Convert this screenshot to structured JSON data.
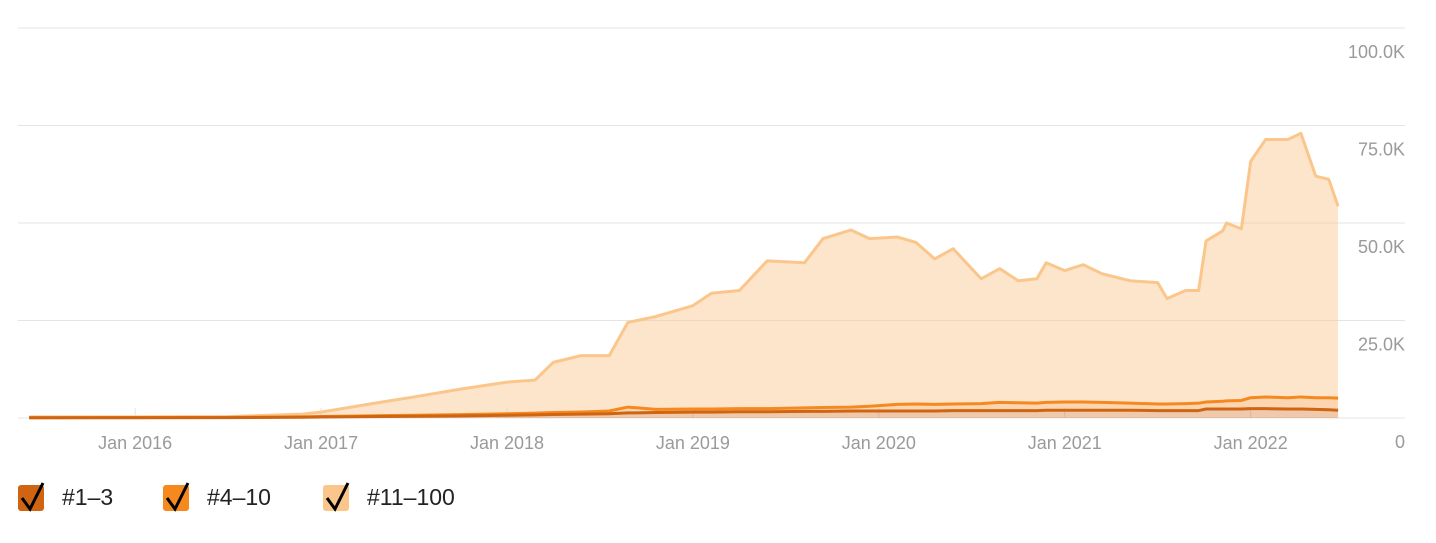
{
  "chart_data": {
    "type": "stacked-area",
    "x": [
      2015.43,
      2016.0,
      2016.5,
      2016.9,
      2017.0,
      2017.25,
      2017.5,
      2017.75,
      2018.0,
      2018.15,
      2018.25,
      2018.4,
      2018.55,
      2018.65,
      2018.8,
      2019.0,
      2019.1,
      2019.25,
      2019.4,
      2019.6,
      2019.7,
      2019.85,
      2019.95,
      2020.1,
      2020.2,
      2020.3,
      2020.4,
      2020.55,
      2020.65,
      2020.75,
      2020.85,
      2020.9,
      2021.0,
      2021.1,
      2021.2,
      2021.35,
      2021.5,
      2021.55,
      2021.65,
      2021.72,
      2021.76,
      2021.85,
      2021.87,
      2021.95,
      2022.0,
      2022.08,
      2022.2,
      2022.27,
      2022.35,
      2022.42,
      2022.47
    ],
    "series": [
      {
        "name": "#1–3",
        "color": "#cf6512",
        "values": [
          50,
          80,
          100,
          200,
          250,
          350,
          450,
          550,
          700,
          800,
          900,
          1000,
          1100,
          1300,
          1400,
          1500,
          1500,
          1600,
          1600,
          1700,
          1700,
          1800,
          1800,
          1800,
          1800,
          1800,
          1900,
          1900,
          1900,
          1900,
          1900,
          2000,
          2000,
          2000,
          2000,
          2000,
          1900,
          1900,
          1900,
          1900,
          2300,
          2300,
          2300,
          2300,
          2400,
          2400,
          2300,
          2300,
          2200,
          2100,
          2000
        ]
      },
      {
        "name": "#4–10",
        "color": "#f5891f",
        "values": [
          30,
          50,
          70,
          100,
          150,
          200,
          250,
          300,
          400,
          450,
          500,
          550,
          700,
          1500,
          800,
          800,
          800,
          800,
          800,
          900,
          1000,
          1000,
          1200,
          1700,
          1800,
          1700,
          1700,
          1800,
          2100,
          2000,
          1900,
          2000,
          2100,
          2100,
          2000,
          1800,
          1700,
          1700,
          1800,
          1900,
          1800,
          2000,
          2100,
          2200,
          2800,
          3000,
          2900,
          3100,
          3000,
          3100,
          3100
        ]
      },
      {
        "name": "#11–100",
        "color": "#fbc68c",
        "values": [
          220,
          170,
          180,
          700,
          1100,
          2950,
          4700,
          6550,
          8100,
          8450,
          12900,
          14450,
          14200,
          21700,
          23800,
          26500,
          29700,
          30300,
          37900,
          37200,
          43300,
          45400,
          43000,
          42900,
          41400,
          37300,
          39800,
          32000,
          34300,
          31300,
          31900,
          35800,
          33700,
          35200,
          33000,
          31400,
          31100,
          27000,
          29000,
          28900,
          41300,
          43700,
          45600,
          44000,
          60600,
          66000,
          66200,
          67600,
          56800,
          56000,
          49200
        ]
      }
    ],
    "xlim": [
      2015.37,
      2022.83
    ],
    "xticks": [
      {
        "value": 2016,
        "label": "Jan 2016"
      },
      {
        "value": 2017,
        "label": "Jan 2017"
      },
      {
        "value": 2018,
        "label": "Jan 2018"
      },
      {
        "value": 2019,
        "label": "Jan 2019"
      },
      {
        "value": 2020,
        "label": "Jan 2020"
      },
      {
        "value": 2021,
        "label": "Jan 2021"
      },
      {
        "value": 2022,
        "label": "Jan 2022"
      }
    ],
    "ylim": [
      0,
      100000
    ],
    "yticks": [
      0,
      {
        "value": 25000,
        "label": "25.0K"
      },
      {
        "value": 50000,
        "label": "50.0K"
      },
      {
        "value": 75000,
        "label": "75.0K"
      },
      {
        "value": 100000,
        "label": "100.0K"
      }
    ],
    "grid": true,
    "legend": "bottom-left"
  }
}
